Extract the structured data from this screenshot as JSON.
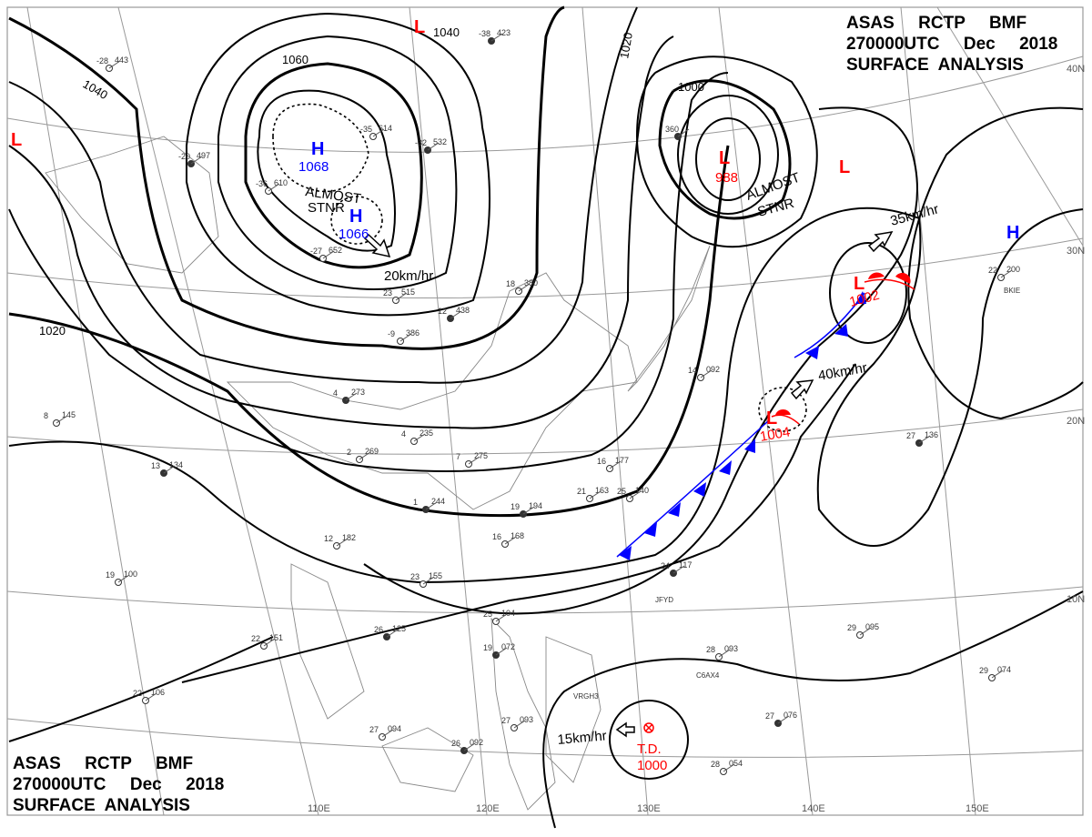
{
  "header": {
    "line1": "ASAS     RCTP     BMF",
    "line2": "270000UTC     Dec     2018",
    "line3": "SURFACE  ANALYSIS"
  },
  "graticule": {
    "longitudes": [
      "110E",
      "120E",
      "130E",
      "140E",
      "150E"
    ],
    "latitudes": [
      "40N",
      "30N",
      "20N",
      "10N"
    ]
  },
  "colors": {
    "high": "#0000ff",
    "low": "#ff0000",
    "cold_front": "#0000ff",
    "warm_front": "#ff0000",
    "isobar": "#000000",
    "grid": "#999999"
  },
  "pressure_systems": [
    {
      "type": "H",
      "value": "1068",
      "color": "#0000ff"
    },
    {
      "type": "H",
      "value": "1066",
      "color": "#0000ff"
    },
    {
      "type": "L",
      "value": "988",
      "color": "#ff0000"
    },
    {
      "type": "L",
      "value": "1002",
      "color": "#ff0000"
    },
    {
      "type": "L",
      "value": "1004",
      "color": "#ff0000"
    },
    {
      "type": "T.D.",
      "value": "1000",
      "color": "#ff0000"
    },
    {
      "type": "H",
      "value": "",
      "color": "#0000ff"
    },
    {
      "type": "L",
      "value": "",
      "color": "#ff0000"
    },
    {
      "type": "L",
      "value": "",
      "color": "#ff0000"
    },
    {
      "type": "L",
      "value": "",
      "color": "#ff0000"
    }
  ],
  "annotations": {
    "stationary_1": "ALMOST\nSTNR",
    "almost": "ALMOST",
    "stnr": "STNR",
    "speed_high": "20km/hr",
    "speed_low1": "35km/hr",
    "speed_low2": "40km/hr",
    "speed_td": "15km/hr"
  },
  "isobar_labels": [
    "1040",
    "1060",
    "1040",
    "1020",
    "1000",
    "1020"
  ],
  "stations": [
    {
      "t": "-38",
      "p": "423"
    },
    {
      "t": "-28",
      "p": "443"
    },
    {
      "t": "-35",
      "p": "614"
    },
    {
      "t": "-32",
      "p": "532"
    },
    {
      "t": "-27",
      "p": "652"
    },
    {
      "t": "-36",
      "p": "610"
    },
    {
      "t": "-20",
      "p": "497"
    },
    {
      "t": "22",
      "p": "200"
    },
    {
      "t": "23",
      "p": "515"
    },
    {
      "t": "12",
      "p": "438"
    },
    {
      "t": "18",
      "p": "380"
    },
    {
      "t": "-9",
      "p": "386"
    },
    {
      "t": "4",
      "p": "273"
    },
    {
      "t": "4",
      "p": "235"
    },
    {
      "t": "2",
      "p": "269"
    },
    {
      "t": "1",
      "p": "244"
    },
    {
      "t": "12",
      "p": "182"
    },
    {
      "t": "8",
      "p": "145"
    },
    {
      "t": "13",
      "p": "134"
    },
    {
      "t": "19",
      "p": "100"
    },
    {
      "t": "22",
      "p": "151"
    },
    {
      "t": "26",
      "p": "125"
    },
    {
      "t": "22",
      "p": "106"
    },
    {
      "t": "27",
      "p": "094"
    },
    {
      "t": "26",
      "p": "092"
    },
    {
      "t": "27",
      "p": "093"
    },
    {
      "t": "25",
      "p": "104"
    },
    {
      "t": "19",
      "p": "072"
    },
    {
      "t": "25",
      "p": "140"
    },
    {
      "t": "21",
      "p": "163"
    },
    {
      "t": "19",
      "p": "194"
    },
    {
      "t": "16",
      "p": "168"
    },
    {
      "t": "23",
      "p": "155"
    },
    {
      "t": "24",
      "p": "117"
    },
    {
      "t": "28",
      "p": "093"
    },
    {
      "t": "29",
      "p": "095"
    },
    {
      "t": "27",
      "p": "076"
    },
    {
      "t": "28",
      "p": "054"
    },
    {
      "t": "29",
      "p": "074"
    },
    {
      "t": "27",
      "p": "136"
    },
    {
      "t": "14",
      "p": "092"
    },
    {
      "t": "16",
      "p": "177"
    },
    {
      "t": "360",
      "p": ""
    },
    {
      "t": "7",
      "p": "275"
    }
  ],
  "station_ids": [
    "JFYD",
    "VRGH3",
    "C6AX4",
    "BKIE"
  ]
}
